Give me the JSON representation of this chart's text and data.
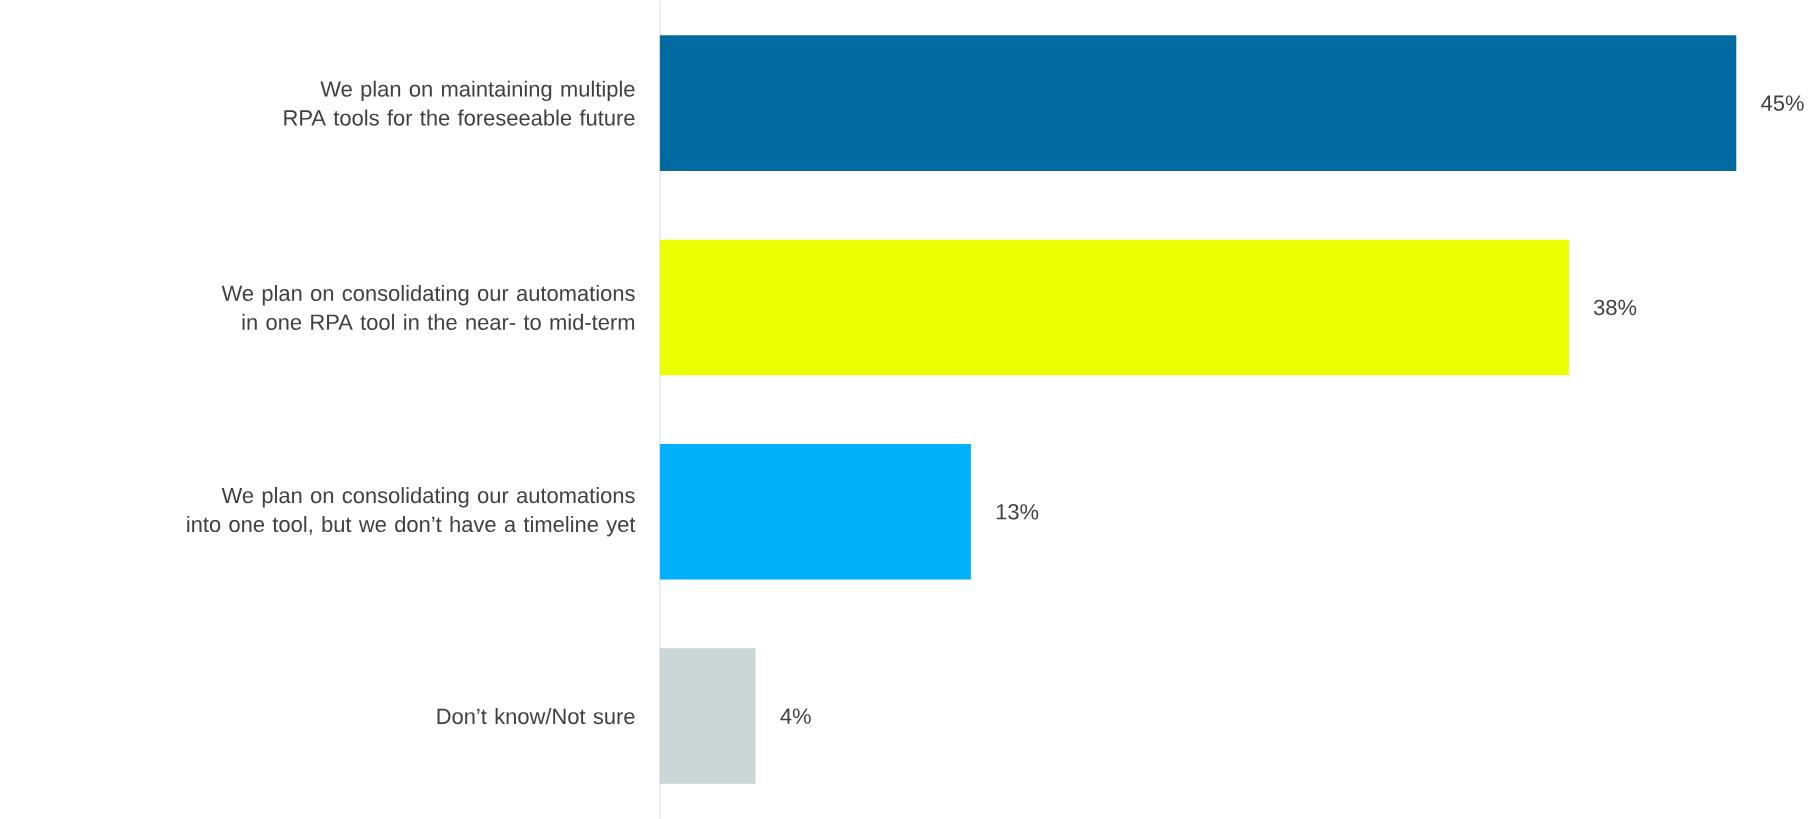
{
  "chart_data": {
    "type": "bar",
    "orientation": "horizontal",
    "categories": [
      "We plan on maintaining multiple RPA tools for the foreseeable future",
      "We plan on consolidating our automations in one RPA tool in the near- to mid-term",
      "We plan on consolidating our automations into one tool, but we don’t have a timeline yet",
      "Don’t know/Not sure"
    ],
    "values": [
      45,
      38,
      13,
      4
    ],
    "colors": [
      "#016ba1",
      "#ebff00",
      "#00b0f8",
      "#cad5d5"
    ],
    "value_labels": [
      "45%",
      "38%",
      "13%",
      "4%"
    ]
  }
}
